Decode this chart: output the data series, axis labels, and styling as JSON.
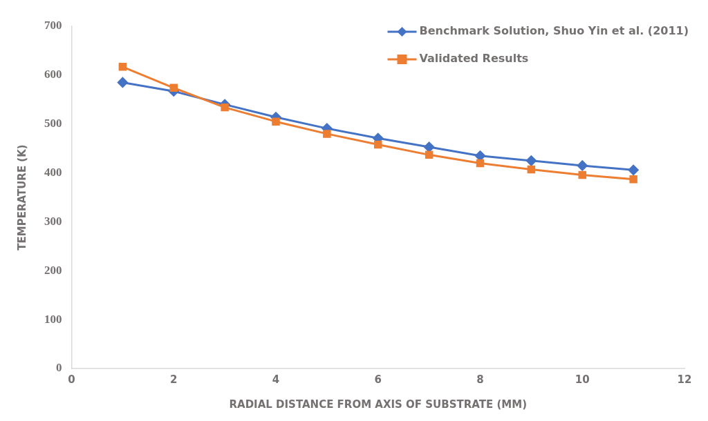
{
  "chart_data": {
    "type": "line",
    "xlabel": "RADIAL DISTANCE FROM AXIS OF SUBSTRATE (MM)",
    "ylabel": "TEMPERATURE (K)",
    "x": [
      1,
      2,
      3,
      4,
      5,
      6,
      7,
      8,
      9,
      10,
      11
    ],
    "series": [
      {
        "name": "Benchmark Solution, Shuo Yin et al. (2011)",
        "color": "#4472c4",
        "marker": "diamond",
        "values": [
          585,
          567,
          540,
          514,
          491,
          471,
          453,
          435,
          425,
          415,
          406
        ]
      },
      {
        "name": "Validated Results",
        "color": "#ed7d31",
        "marker": "square",
        "values": [
          617,
          574,
          534,
          505,
          480,
          458,
          437,
          420,
          407,
          396,
          387
        ]
      }
    ],
    "xlim": [
      0,
      12
    ],
    "xticks": [
      0,
      2,
      4,
      6,
      8,
      10,
      12
    ],
    "ylim": [
      0,
      700
    ],
    "yticks": [
      0,
      100,
      200,
      300,
      400,
      500,
      600,
      700
    ],
    "grid": false,
    "legend": "top right",
    "line_style": "solid"
  }
}
